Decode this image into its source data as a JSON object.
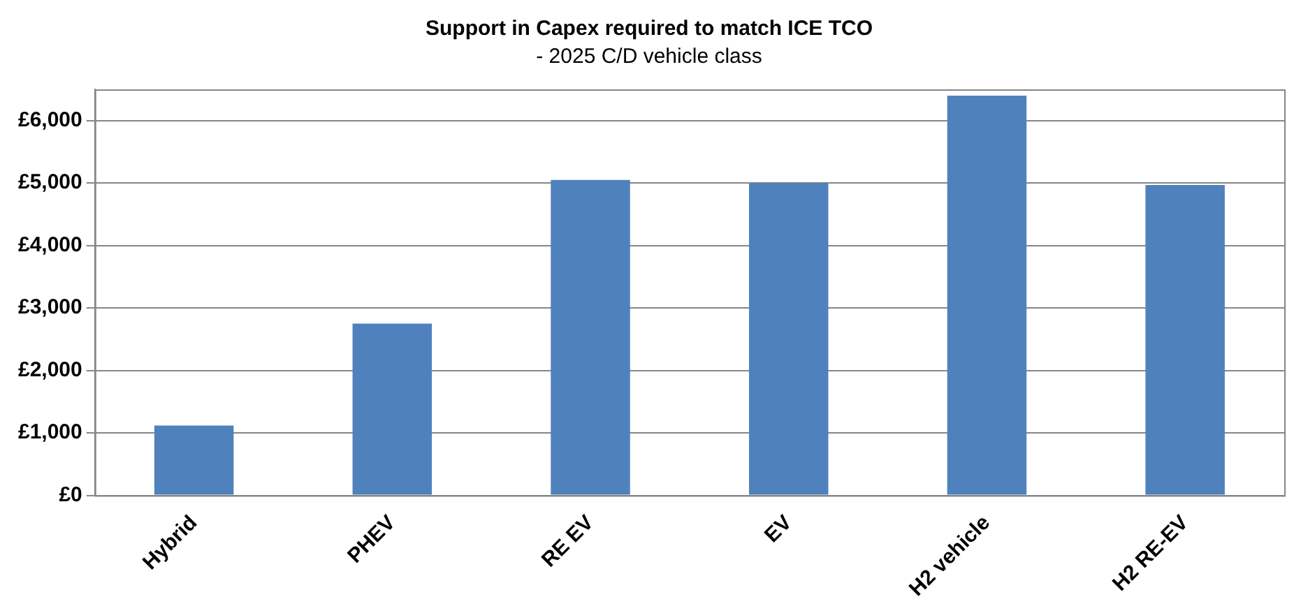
{
  "chart_data": {
    "type": "bar",
    "title": "Support in Capex required to match ICE TCO",
    "subtitle": "- 2025 C/D vehicle class",
    "categories": [
      "Hybrid",
      "PHEV",
      "RE EV",
      "EV",
      "H2 vehicle",
      "H2 RE-EV"
    ],
    "values": [
      1120,
      2750,
      5050,
      5000,
      6400,
      4970
    ],
    "color": "#4f81bd",
    "ylim": [
      0,
      6500
    ],
    "yticks": [
      {
        "value": 0,
        "label": "£0"
      },
      {
        "value": 1000,
        "label": "£1,000"
      },
      {
        "value": 2000,
        "label": "£2,000"
      },
      {
        "value": 3000,
        "label": "£3,000"
      },
      {
        "value": 4000,
        "label": "£4,000"
      },
      {
        "value": 5000,
        "label": "£5,000"
      },
      {
        "value": 6000,
        "label": "£6,000"
      }
    ],
    "grid": "y",
    "legend": false
  }
}
